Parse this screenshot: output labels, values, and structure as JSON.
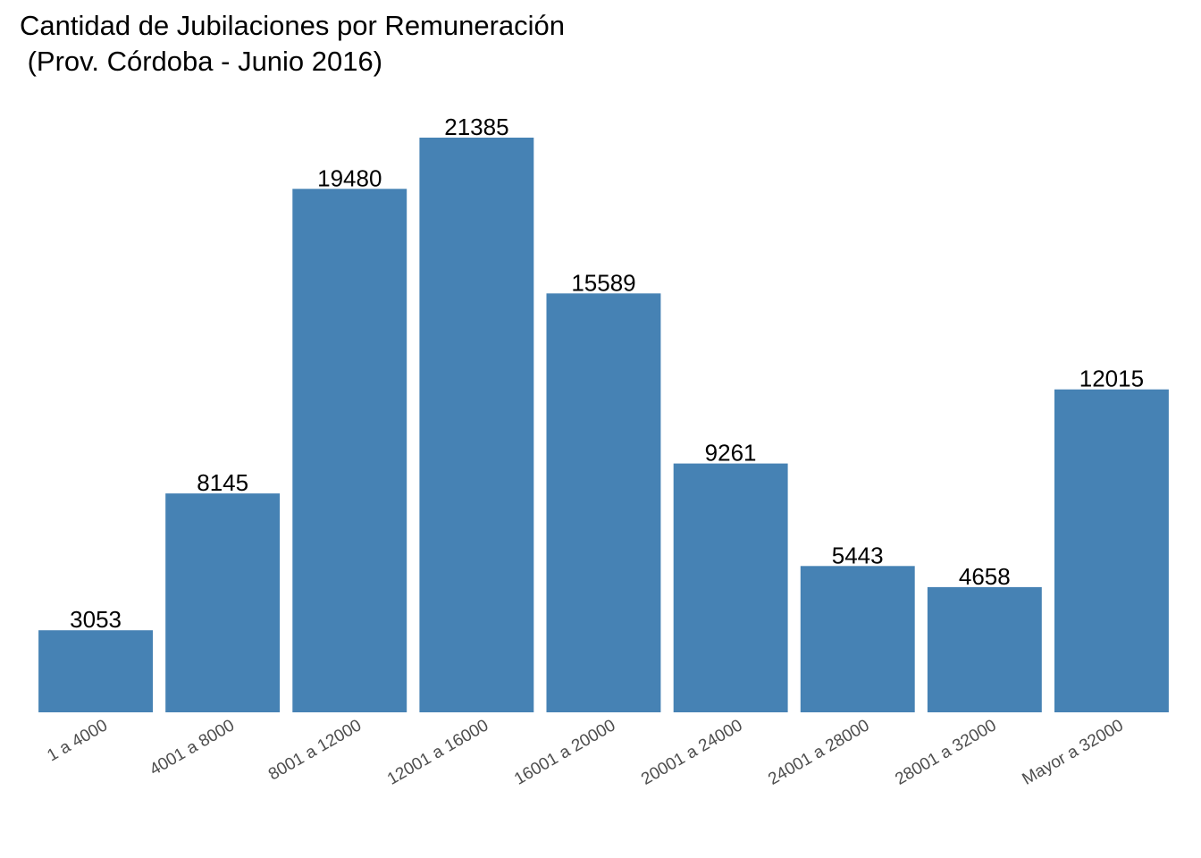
{
  "chart_data": {
    "type": "bar",
    "title": "Cantidad de Jubilaciones por Remuneración",
    "subtitle": " (Prov. Córdoba - Junio 2016)",
    "xlabel": "",
    "ylabel": "",
    "categories": [
      "1 a 4000",
      "4001 a 8000",
      "8001 a 12000",
      "12001 a 16000",
      "16001 a 20000",
      "20001 a 24000",
      "24001 a 28000",
      "28001 a 32000",
      "Mayor a 32000"
    ],
    "values": [
      3053,
      8145,
      19480,
      21385,
      15589,
      9261,
      5443,
      4658,
      12015
    ],
    "ylim": [
      0,
      22450
    ],
    "grid": false,
    "legend": "none",
    "bar_color": "#4682B4",
    "label_color": "#000000",
    "tick_label_color": "#4D4D4D"
  }
}
